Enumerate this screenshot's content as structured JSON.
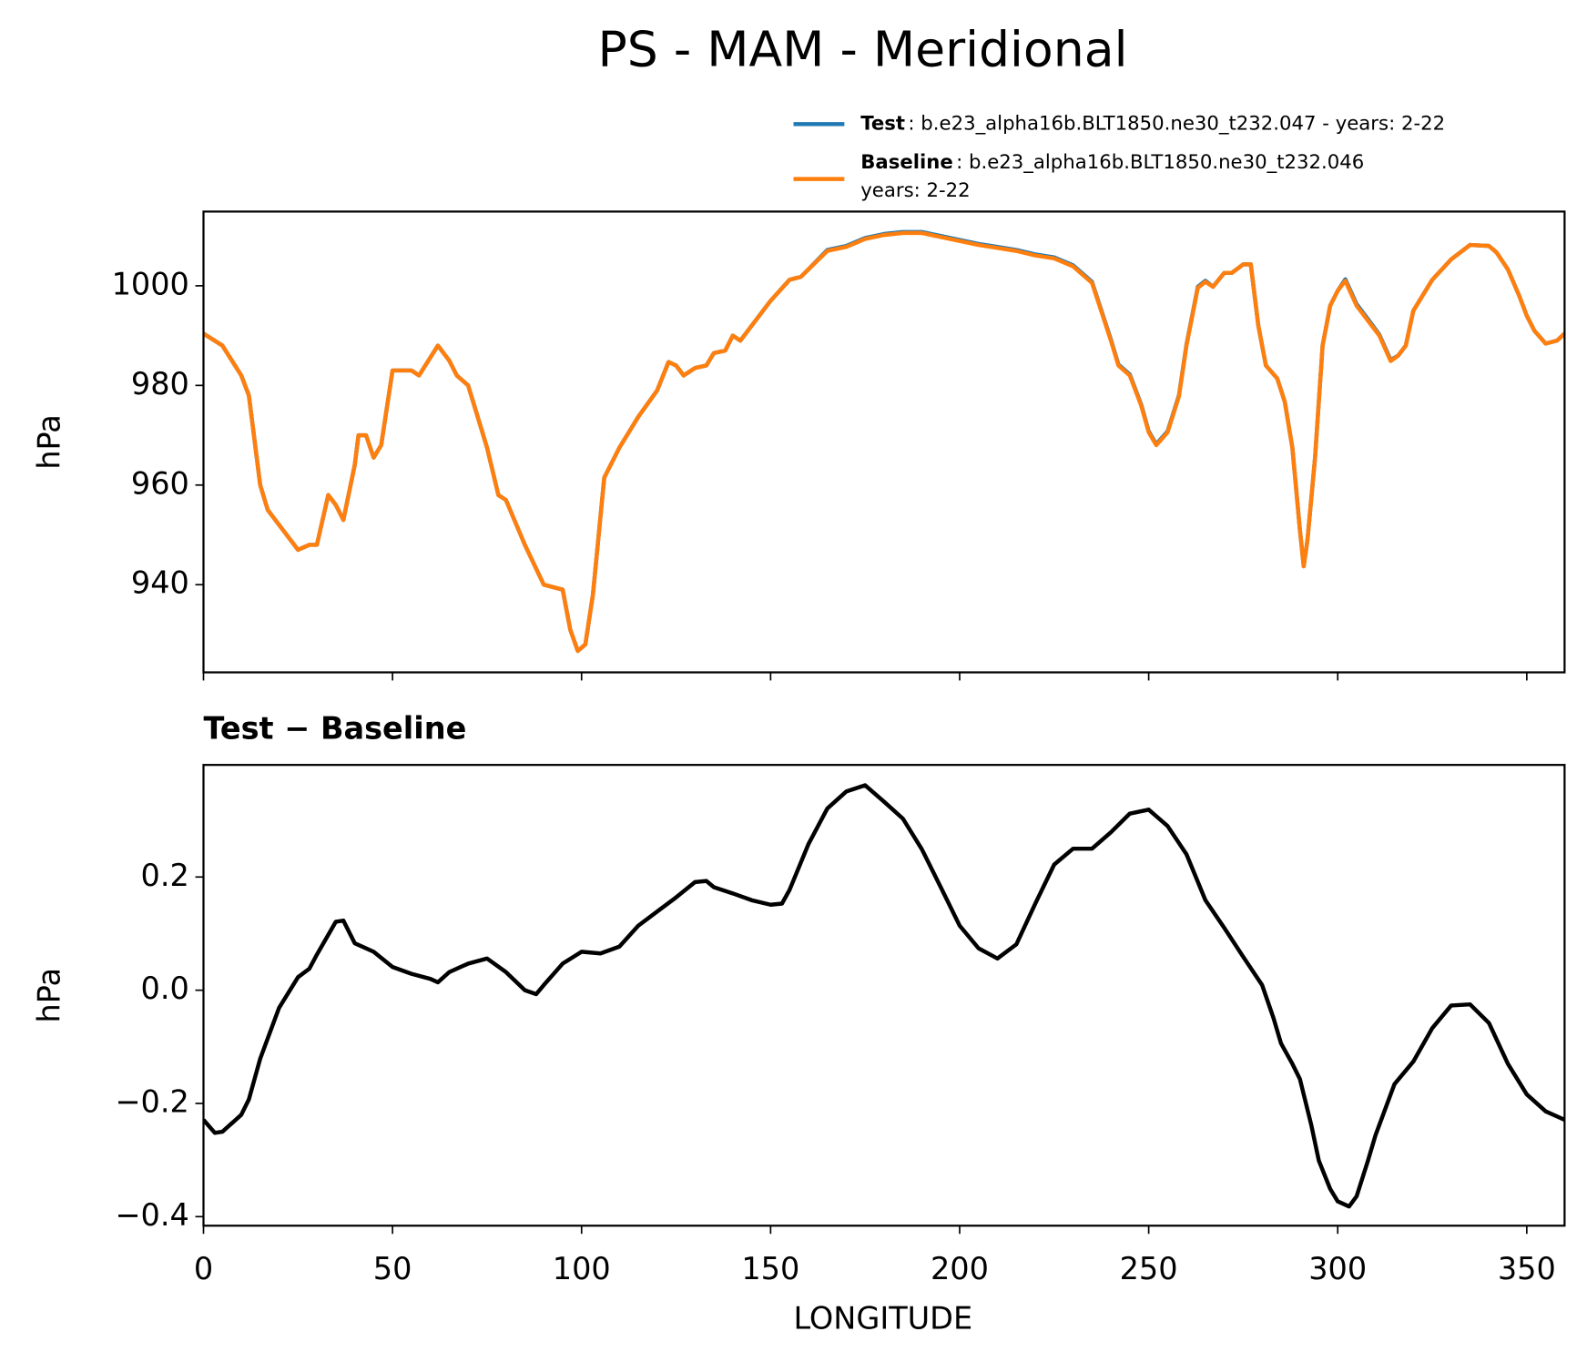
{
  "chart_data": [
    {
      "type": "line",
      "title": "PS - MAM - Meridional",
      "ylabel": "hPa",
      "x": [
        0,
        5,
        10,
        12,
        15,
        17,
        20,
        25,
        28,
        30,
        33,
        35,
        37,
        40,
        41,
        43,
        45,
        47,
        50,
        55,
        57,
        62,
        65,
        67,
        70,
        72,
        75,
        78,
        80,
        85,
        90,
        95,
        97,
        99,
        101,
        103,
        106,
        110,
        115,
        120,
        123,
        125,
        127,
        130,
        133,
        135,
        138,
        140,
        142,
        145,
        150,
        155,
        158,
        160,
        165,
        170,
        175,
        180,
        185,
        190,
        195,
        200,
        205,
        210,
        215,
        220,
        225,
        230,
        235,
        240,
        242,
        245,
        248,
        250,
        252,
        255,
        258,
        260,
        263,
        265,
        267,
        270,
        272,
        275,
        277,
        279,
        281,
        284,
        286,
        288,
        290,
        291,
        292,
        294,
        296,
        298,
        300,
        302,
        305,
        308,
        311,
        314,
        316,
        318,
        320,
        325,
        330,
        335,
        340,
        342,
        345,
        348,
        350,
        352,
        355,
        358,
        360
      ],
      "series": [
        {
          "name": "Test",
          "description": [
            ": b.e23_alpha16b.BLT1850.ne30_t232.047 - years: 2-22"
          ],
          "color": "#1f77b4",
          "values": [
            990.4,
            988,
            982,
            978,
            960,
            955,
            952,
            947,
            948,
            948,
            958,
            956,
            953,
            964,
            970,
            970,
            965.5,
            968,
            983,
            983,
            982,
            988,
            985,
            982,
            980,
            975,
            967.5,
            958,
            957,
            948,
            940,
            939,
            931,
            926.7,
            928,
            938,
            961.5,
            967.5,
            973.7,
            979,
            984.7,
            984,
            982,
            983.5,
            984,
            986.5,
            987,
            990,
            989,
            992,
            997,
            1001.2,
            1001.8,
            1003.3,
            1007.2,
            1008,
            1009.6,
            1010.4,
            1010.8,
            1010.8,
            1010,
            1009.2,
            1008.4,
            1007.8,
            1007.2,
            1006.3,
            1005.7,
            1004.1,
            1000.8,
            989.2,
            984.2,
            982.2,
            976.2,
            970.8,
            968.2,
            970.8,
            978,
            988.2,
            999.8,
            1001,
            999.8,
            1002.6,
            1002.6,
            1004.3,
            1004.3,
            992,
            984,
            981.4,
            976.7,
            967.5,
            951,
            943.7,
            949,
            965.5,
            988,
            996,
            999,
            1001.3,
            996.3,
            993.3,
            990.2,
            985.1,
            986,
            988,
            995,
            1001.2,
            1005.3,
            1008.2,
            1008,
            1006.7,
            1003.3,
            998,
            994,
            991,
            988.4,
            989,
            990.4
          ]
        },
        {
          "name": "Baseline",
          "description": [
            ": b.e23_alpha16b.BLT1850.ne30_t232.046",
            "years: 2-22"
          ],
          "color": "#ff7f0e",
          "values": [
            990.4,
            988,
            982,
            978,
            960,
            955,
            952,
            947,
            948,
            948,
            958,
            956,
            953,
            964,
            970,
            970,
            965.5,
            968,
            983,
            983,
            982,
            988,
            985,
            982,
            980,
            975,
            967.5,
            958,
            957,
            948,
            940,
            939,
            931,
            926.7,
            928,
            938,
            961.5,
            967.5,
            973.7,
            979,
            984.7,
            984,
            982,
            983.5,
            984,
            986.5,
            987,
            990,
            989,
            992,
            997,
            1001.2,
            1001.8,
            1003.3,
            1007,
            1007.8,
            1009.4,
            1010.2,
            1010.6,
            1010.6,
            1009.8,
            1009,
            1008.2,
            1007.6,
            1007,
            1006.1,
            1005.5,
            1003.9,
            1000.6,
            989,
            984,
            982,
            976,
            970.6,
            968,
            970.6,
            977.8,
            988,
            999.6,
            1000.8,
            999.8,
            1002.6,
            1002.6,
            1004.3,
            1004.3,
            992,
            984,
            981.4,
            976.7,
            967.5,
            951,
            943.7,
            949,
            965.5,
            988,
            996,
            999,
            1001,
            996,
            993,
            990,
            984.9,
            986,
            988,
            995,
            1001.2,
            1005.3,
            1008.2,
            1008,
            1006.7,
            1003.3,
            998,
            994,
            991,
            988.4,
            989,
            990.4
          ]
        }
      ],
      "xlim": [
        0,
        360
      ],
      "ylim": [
        922.4,
        1014.9
      ],
      "yticks": [
        940,
        960,
        980,
        1000
      ],
      "legend": "upper-right"
    },
    {
      "type": "line",
      "title": "Test − Baseline",
      "ylabel": "hPa",
      "xlabel": "LONGITUDE",
      "x": [
        0,
        3,
        5,
        10,
        12,
        15,
        20,
        25,
        28,
        30,
        35,
        37,
        40,
        45,
        50,
        55,
        60,
        62,
        65,
        70,
        75,
        80,
        85,
        88,
        90,
        95,
        100,
        105,
        110,
        115,
        120,
        125,
        130,
        133,
        135,
        140,
        145,
        150,
        153,
        155,
        160,
        165,
        170,
        175,
        180,
        185,
        190,
        195,
        200,
        205,
        210,
        215,
        220,
        225,
        230,
        235,
        240,
        245,
        250,
        255,
        260,
        265,
        270,
        275,
        280,
        283,
        285,
        288,
        290,
        293,
        295,
        298,
        300,
        303,
        305,
        308,
        310,
        315,
        320,
        325,
        330,
        335,
        340,
        345,
        350,
        355,
        360
      ],
      "series": [
        {
          "color": "#000000",
          "values": [
            -0.229,
            -0.252,
            -0.25,
            -0.22,
            -0.193,
            -0.121,
            -0.031,
            0.023,
            0.038,
            0.063,
            0.121,
            0.123,
            0.083,
            0.068,
            0.041,
            0.029,
            0.02,
            0.014,
            0.032,
            0.047,
            0.056,
            0.032,
            0,
            -0.007,
            0.009,
            0.047,
            0.068,
            0.065,
            0.077,
            0.114,
            0.139,
            0.164,
            0.191,
            0.193,
            0.182,
            0.171,
            0.159,
            0.151,
            0.153,
            0.177,
            0.258,
            0.321,
            0.351,
            0.362,
            0.333,
            0.303,
            0.249,
            0.182,
            0.114,
            0.074,
            0.056,
            0.081,
            0.153,
            0.222,
            0.25,
            0.25,
            0.279,
            0.312,
            0.319,
            0.29,
            0.24,
            0.159,
            0.11,
            0.059,
            0.009,
            -0.049,
            -0.094,
            -0.13,
            -0.157,
            -0.238,
            -0.301,
            -0.351,
            -0.373,
            -0.382,
            -0.364,
            -0.301,
            -0.256,
            -0.166,
            -0.126,
            -0.067,
            -0.027,
            -0.025,
            -0.058,
            -0.13,
            -0.184,
            -0.214,
            -0.229
          ]
        }
      ],
      "xlim": [
        0,
        360
      ],
      "xticks": [
        0,
        50,
        100,
        150,
        200,
        250,
        300,
        350
      ],
      "ylim": [
        -0.416,
        0.398
      ],
      "yticks": [
        {
          "value": -0.4,
          "label": "−0.4"
        },
        {
          "value": -0.2,
          "label": "−0.2"
        },
        {
          "value": 0,
          "label": "0.0"
        },
        0.2
      ]
    }
  ]
}
